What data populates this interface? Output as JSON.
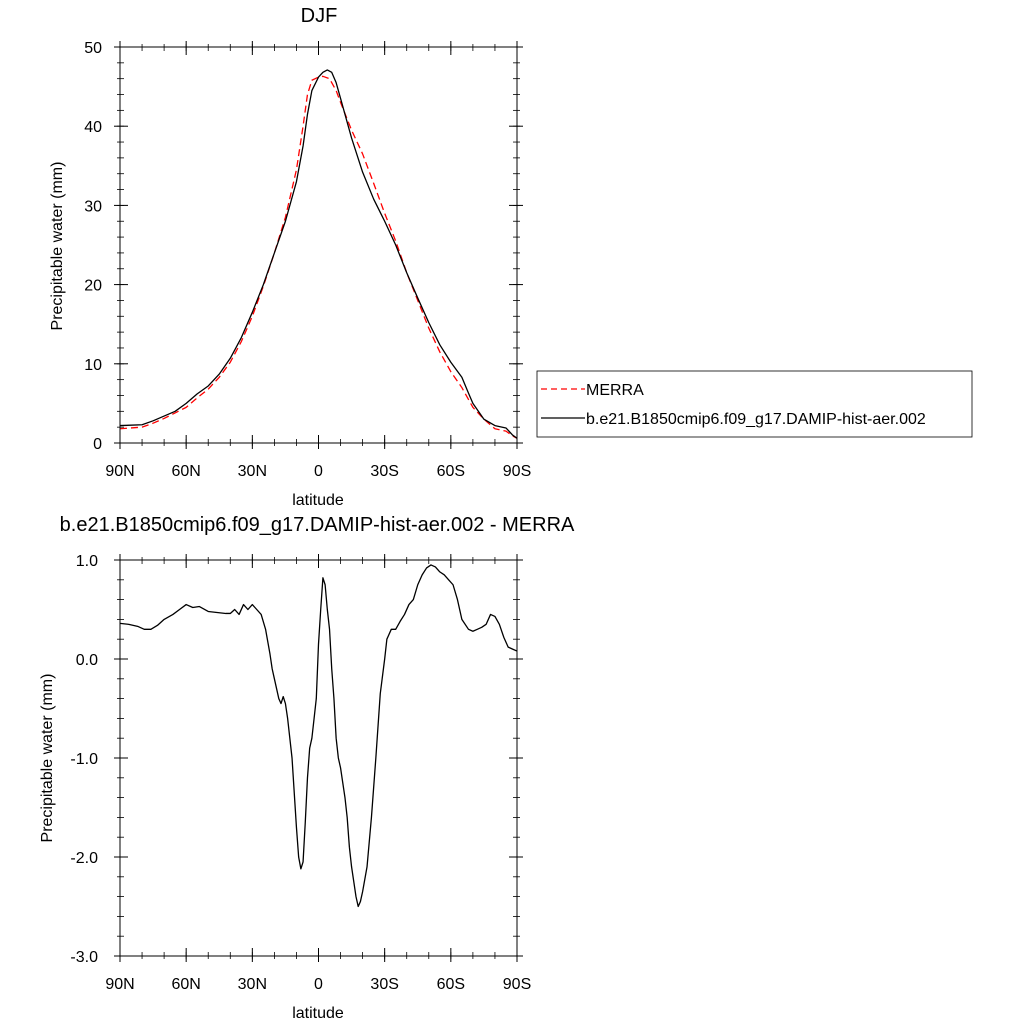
{
  "chart_data": [
    {
      "type": "line",
      "title": "DJF",
      "xlabel": "latitude",
      "ylabel": "Precipitable water (mm)",
      "xlim": [
        -90,
        90
      ],
      "ylim": [
        0,
        50
      ],
      "x_ticks": [
        {
          "value": -90,
          "label": "90N"
        },
        {
          "value": -60,
          "label": "60N"
        },
        {
          "value": -30,
          "label": "30N"
        },
        {
          "value": 0,
          "label": "0"
        },
        {
          "value": 30,
          "label": "30S"
        },
        {
          "value": 60,
          "label": "60S"
        },
        {
          "value": 90,
          "label": "90S"
        }
      ],
      "y_ticks": [
        {
          "value": 0,
          "label": "0"
        },
        {
          "value": 10,
          "label": "10"
        },
        {
          "value": 20,
          "label": "20"
        },
        {
          "value": 30,
          "label": "30"
        },
        {
          "value": 40,
          "label": "40"
        },
        {
          "value": 50,
          "label": "50"
        }
      ],
      "grid": false,
      "legend_position": "right",
      "series": [
        {
          "name": "MERRA",
          "color": "#ff0000",
          "dashed": true,
          "x": [
            -90,
            -80,
            -75,
            -70,
            -65,
            -60,
            -55,
            -50,
            -45,
            -40,
            -35,
            -30,
            -25,
            -20,
            -15,
            -10,
            -7,
            -5,
            -3,
            0,
            2,
            5,
            8,
            10,
            15,
            20,
            25,
            30,
            35,
            40,
            45,
            50,
            55,
            60,
            65,
            68,
            70,
            75,
            80,
            85,
            88,
            90
          ],
          "y": [
            1.8,
            2.0,
            2.5,
            3.1,
            3.8,
            4.5,
            5.7,
            6.8,
            8.3,
            10.2,
            12.8,
            16.0,
            19.8,
            24.0,
            28.5,
            34.5,
            40.0,
            44.0,
            45.8,
            46.2,
            46.3,
            46.0,
            44.5,
            43.0,
            39.5,
            36.5,
            32.8,
            29.0,
            25.5,
            21.5,
            18.0,
            14.5,
            11.5,
            9.0,
            7.0,
            5.5,
            4.5,
            3.0,
            1.8,
            1.5,
            0.9,
            0.6
          ]
        },
        {
          "name": "b.e21.B1850cmip6.f09_g17.DAMIP-hist-aer.002",
          "color": "#000000",
          "dashed": false,
          "x": [
            -90,
            -80,
            -75,
            -70,
            -65,
            -60,
            -55,
            -50,
            -45,
            -40,
            -35,
            -30,
            -25,
            -20,
            -15,
            -10,
            -7,
            -5,
            -3,
            0,
            2,
            4,
            6,
            8,
            10,
            15,
            20,
            25,
            30,
            35,
            40,
            45,
            50,
            55,
            60,
            65,
            68,
            70,
            75,
            80,
            85,
            88,
            90
          ],
          "y": [
            2.2,
            2.3,
            2.8,
            3.4,
            4.0,
            5.0,
            6.2,
            7.2,
            8.7,
            10.7,
            13.3,
            16.5,
            20.0,
            24.0,
            28.0,
            33.0,
            37.5,
            41.5,
            44.5,
            46.2,
            46.8,
            47.1,
            46.8,
            45.5,
            43.5,
            38.5,
            34.2,
            30.8,
            28.0,
            25.0,
            21.5,
            18.3,
            15.2,
            12.4,
            10.2,
            8.3,
            6.3,
            5.0,
            3.0,
            2.2,
            1.9,
            1.0,
            0.6
          ]
        }
      ]
    },
    {
      "type": "line",
      "title": "b.e21.B1850cmip6.f09_g17.DAMIP-hist-aer.002 - MERRA",
      "xlabel": "latitude",
      "ylabel": "Precipitable water (mm)",
      "xlim": [
        -90,
        90
      ],
      "ylim": [
        -3.0,
        1.0
      ],
      "x_ticks": [
        {
          "value": -90,
          "label": "90N"
        },
        {
          "value": -60,
          "label": "60N"
        },
        {
          "value": -30,
          "label": "30N"
        },
        {
          "value": 0,
          "label": "0"
        },
        {
          "value": 30,
          "label": "30S"
        },
        {
          "value": 60,
          "label": "60S"
        },
        {
          "value": 90,
          "label": "90S"
        }
      ],
      "y_ticks": [
        {
          "value": 1.0,
          "label": "1.0"
        },
        {
          "value": 0.0,
          "label": "0.0"
        },
        {
          "value": -1.0,
          "label": "-1.0"
        },
        {
          "value": -2.0,
          "label": "-2.0"
        },
        {
          "value": -3.0,
          "label": "-3.0"
        }
      ],
      "grid": false,
      "series": [
        {
          "color": "#000000",
          "dashed": false,
          "x": [
            -90,
            -86,
            -82,
            -79,
            -76,
            -73,
            -70,
            -66,
            -63,
            -60,
            -57,
            -54,
            -50,
            -46,
            -42,
            -40,
            -38,
            -36,
            -34,
            -32,
            -30,
            -28,
            -26,
            -24,
            -22,
            -21,
            -20,
            -19,
            -18,
            -17,
            -16,
            -15,
            -14,
            -12,
            -10,
            -9,
            -8,
            -7,
            -6,
            -5,
            -4,
            -3,
            -2,
            -1,
            0,
            1,
            2,
            3,
            4,
            5,
            6,
            7,
            8,
            9,
            10,
            11,
            12,
            13,
            14,
            15,
            16,
            17,
            18,
            19,
            20,
            22,
            24,
            26,
            28,
            30,
            31,
            33,
            35,
            37,
            39,
            41,
            43,
            45,
            47,
            49,
            51,
            53,
            55,
            57,
            59,
            61,
            63,
            65,
            68,
            70,
            72,
            74,
            76,
            78,
            80,
            82,
            84,
            86,
            88,
            90
          ],
          "y": [
            0.36,
            0.35,
            0.33,
            0.3,
            0.3,
            0.34,
            0.4,
            0.45,
            0.5,
            0.55,
            0.52,
            0.53,
            0.48,
            0.47,
            0.46,
            0.46,
            0.5,
            0.45,
            0.55,
            0.5,
            0.55,
            0.5,
            0.45,
            0.3,
            0.05,
            -0.1,
            -0.2,
            -0.3,
            -0.4,
            -0.45,
            -0.38,
            -0.45,
            -0.6,
            -1.0,
            -1.7,
            -2.0,
            -2.12,
            -2.05,
            -1.65,
            -1.2,
            -0.9,
            -0.8,
            -0.6,
            -0.4,
            0.15,
            0.5,
            0.82,
            0.75,
            0.5,
            0.3,
            -0.1,
            -0.4,
            -0.8,
            -1.0,
            -1.1,
            -1.25,
            -1.4,
            -1.6,
            -1.9,
            -2.1,
            -2.25,
            -2.4,
            -2.5,
            -2.45,
            -2.35,
            -2.1,
            -1.6,
            -1.0,
            -0.35,
            0.0,
            0.2,
            0.3,
            0.3,
            0.38,
            0.45,
            0.55,
            0.6,
            0.75,
            0.85,
            0.92,
            0.95,
            0.93,
            0.88,
            0.85,
            0.8,
            0.75,
            0.6,
            0.4,
            0.3,
            0.28,
            0.3,
            0.32,
            0.35,
            0.45,
            0.43,
            0.35,
            0.22,
            0.12,
            0.1,
            0.08
          ]
        }
      ]
    }
  ]
}
